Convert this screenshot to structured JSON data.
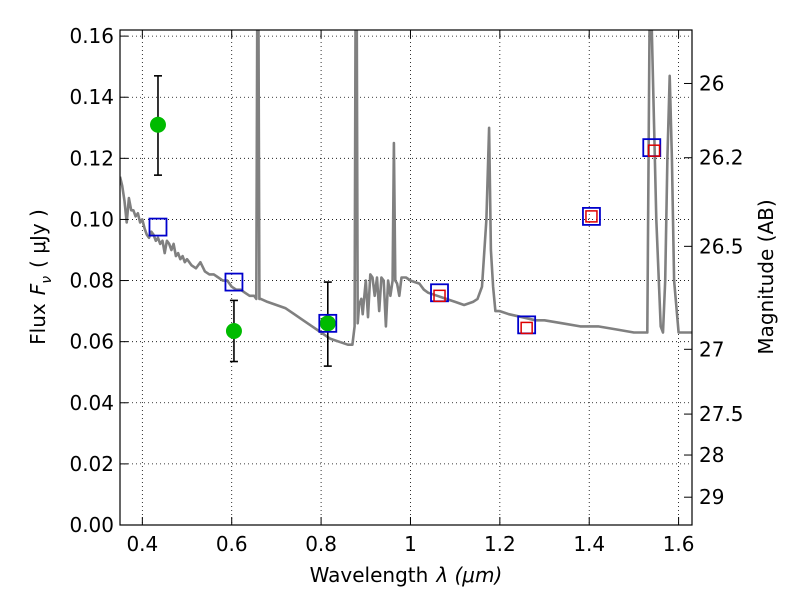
{
  "chart_data": {
    "type": "line",
    "xlabel_main": "Wavelength",
    "xlabel_math": "λ (μm)",
    "ylabel_prefix": "Flux",
    "ylabel_math": "F",
    "ylabel_sub": "ν",
    "ylabel_unit": "( μJy )",
    "ylabel_right": "Magnitude (AB)",
    "xlim": [
      0.35,
      1.63
    ],
    "ylim": [
      0.0,
      0.162
    ],
    "x_ticks": [
      0.4,
      0.6,
      0.8,
      1.0,
      1.2,
      1.4,
      1.6
    ],
    "x_tick_labels": [
      "0.4",
      "0.6",
      "0.8",
      "1",
      "1.2",
      "1.4",
      "1.6"
    ],
    "y_ticks": [
      0.0,
      0.02,
      0.04,
      0.06,
      0.08,
      0.1,
      0.12,
      0.14,
      0.16
    ],
    "y_tick_labels": [
      "0.00",
      "0.02",
      "0.04",
      "0.06",
      "0.08",
      "0.10",
      "0.12",
      "0.14",
      "0.16"
    ],
    "right_ticks": [
      {
        "label": "26",
        "flux": 0.1445
      },
      {
        "label": "26.2",
        "flux": 0.1202
      },
      {
        "label": "26.5",
        "flux": 0.0912
      },
      {
        "label": "27",
        "flux": 0.0575
      },
      {
        "label": "27.5",
        "flux": 0.0363
      },
      {
        "label": "28",
        "flux": 0.0229
      },
      {
        "label": "29",
        "flux": 0.0091
      }
    ],
    "grid": true,
    "grid_style": "dotted",
    "colors": {
      "model": "#808080",
      "observed": "#00bb00",
      "model_photometry": "#0000cc",
      "synthetic_photometry": "#dd0000",
      "errorbar": "#000000",
      "axes": "#000000",
      "grid": "#000000"
    },
    "series": [
      {
        "kind": "sed_model",
        "x": [
          0.35,
          0.355,
          0.36,
          0.365,
          0.37,
          0.375,
          0.38,
          0.385,
          0.39,
          0.395,
          0.4,
          0.405,
          0.41,
          0.415,
          0.42,
          0.425,
          0.43,
          0.435,
          0.44,
          0.445,
          0.45,
          0.455,
          0.46,
          0.465,
          0.47,
          0.475,
          0.48,
          0.485,
          0.49,
          0.495,
          0.5,
          0.505,
          0.51,
          0.52,
          0.53,
          0.54,
          0.55,
          0.56,
          0.57,
          0.58,
          0.59,
          0.6,
          0.61,
          0.62,
          0.63,
          0.64,
          0.65,
          0.655,
          0.657,
          0.66,
          0.662,
          0.665,
          0.68,
          0.7,
          0.72,
          0.74,
          0.76,
          0.78,
          0.8,
          0.82,
          0.84,
          0.86,
          0.87,
          0.875,
          0.877,
          0.88,
          0.882,
          0.885,
          0.89,
          0.893,
          0.895,
          0.9,
          0.905,
          0.91,
          0.915,
          0.92,
          0.925,
          0.93,
          0.935,
          0.94,
          0.945,
          0.95,
          0.955,
          0.96,
          0.963,
          0.966,
          0.97,
          0.975,
          0.98,
          0.99,
          1.0,
          1.02,
          1.03,
          1.04,
          1.06,
          1.08,
          1.1,
          1.12,
          1.14,
          1.15,
          1.16,
          1.17,
          1.176,
          1.18,
          1.185,
          1.19,
          1.2,
          1.22,
          1.25,
          1.28,
          1.3,
          1.34,
          1.38,
          1.42,
          1.46,
          1.5,
          1.53,
          1.535,
          1.54,
          1.55,
          1.56,
          1.565,
          1.57,
          1.575,
          1.58,
          1.585,
          1.59,
          1.6,
          1.605,
          1.61,
          1.63
        ],
        "y": [
          0.114,
          0.111,
          0.106,
          0.099,
          0.107,
          0.103,
          0.103,
          0.101,
          0.102,
          0.099,
          0.1,
          0.097,
          0.095,
          0.094,
          0.096,
          0.095,
          0.093,
          0.094,
          0.092,
          0.093,
          0.089,
          0.093,
          0.092,
          0.09,
          0.092,
          0.088,
          0.089,
          0.087,
          0.088,
          0.086,
          0.087,
          0.086,
          0.085,
          0.084,
          0.086,
          0.083,
          0.082,
          0.082,
          0.081,
          0.08,
          0.08,
          0.078,
          0.077,
          0.077,
          0.076,
          0.075,
          0.075,
          0.074,
          0.162,
          0.162,
          0.074,
          0.074,
          0.073,
          0.072,
          0.071,
          0.069,
          0.067,
          0.065,
          0.063,
          0.061,
          0.06,
          0.059,
          0.059,
          0.065,
          0.162,
          0.162,
          0.066,
          0.072,
          0.074,
          0.069,
          0.072,
          0.08,
          0.068,
          0.082,
          0.081,
          0.075,
          0.081,
          0.07,
          0.081,
          0.08,
          0.065,
          0.08,
          0.075,
          0.08,
          0.125,
          0.08,
          0.079,
          0.075,
          0.081,
          0.081,
          0.08,
          0.079,
          0.077,
          0.076,
          0.075,
          0.074,
          0.073,
          0.072,
          0.073,
          0.074,
          0.078,
          0.1,
          0.13,
          0.09,
          0.078,
          0.07,
          0.07,
          0.069,
          0.068,
          0.067,
          0.067,
          0.066,
          0.065,
          0.065,
          0.064,
          0.063,
          0.063,
          0.162,
          0.162,
          0.1,
          0.065,
          0.063,
          0.08,
          0.12,
          0.147,
          0.12,
          0.08,
          0.063,
          0.063,
          0.063,
          0.063
        ]
      },
      {
        "kind": "observed_photometry",
        "x": [
          0.435,
          0.605,
          0.815
        ],
        "y": [
          0.131,
          0.0635,
          0.066
        ],
        "yerr_low": [
          0.1145,
          0.0535,
          0.052
        ],
        "yerr_high": [
          0.147,
          0.0735,
          0.0795
        ]
      },
      {
        "kind": "model_photometry",
        "x": [
          0.435,
          0.605,
          0.815,
          1.065,
          1.26,
          1.405,
          1.54
        ],
        "y": [
          0.0975,
          0.0795,
          0.066,
          0.076,
          0.0655,
          0.101,
          0.1235
        ]
      },
      {
        "kind": "synthetic_photometry",
        "x": [
          1.065,
          1.26,
          1.405,
          1.545
        ],
        "y": [
          0.075,
          0.0645,
          0.101,
          0.1225
        ]
      }
    ]
  }
}
